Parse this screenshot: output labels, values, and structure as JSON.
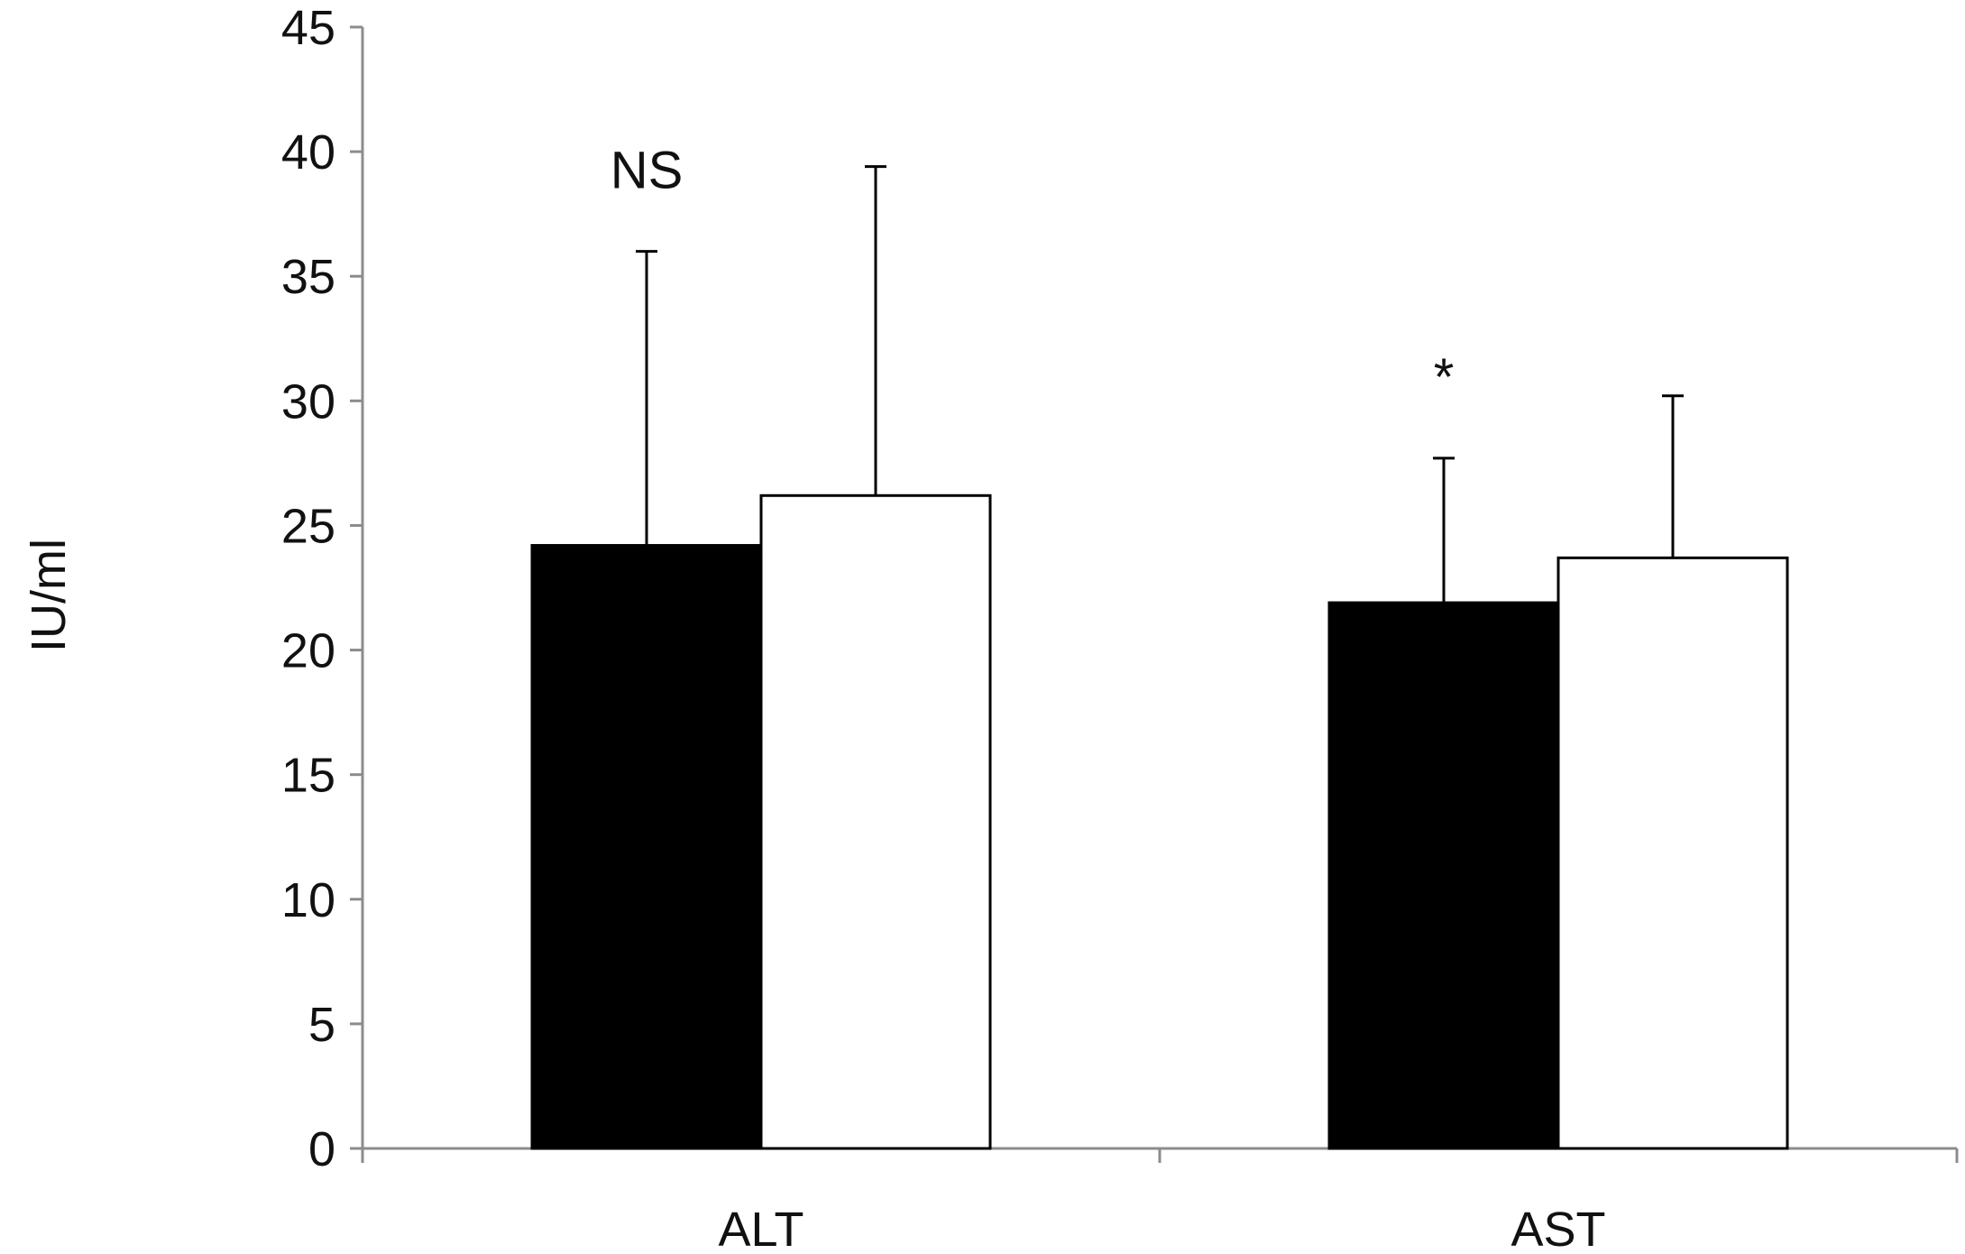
{
  "chart_data": {
    "type": "bar",
    "categories": [
      "ALT",
      "AST"
    ],
    "series": [
      {
        "values": [
          24.2,
          21.9
        ],
        "errors": [
          11.8,
          5.8
        ],
        "color": "#000000"
      },
      {
        "values": [
          26.2,
          23.7
        ],
        "errors": [
          13.2,
          6.5
        ],
        "color": "#ffffff"
      }
    ],
    "ylabel": "IU/ml",
    "xlabel": "",
    "ylim": [
      0,
      45
    ],
    "yticks": [
      0,
      5,
      10,
      15,
      20,
      25,
      30,
      35,
      40,
      45
    ],
    "grid": false,
    "annotations": [
      {
        "category": "ALT",
        "text": "NS"
      },
      {
        "category": "AST",
        "text": "*"
      }
    ]
  }
}
